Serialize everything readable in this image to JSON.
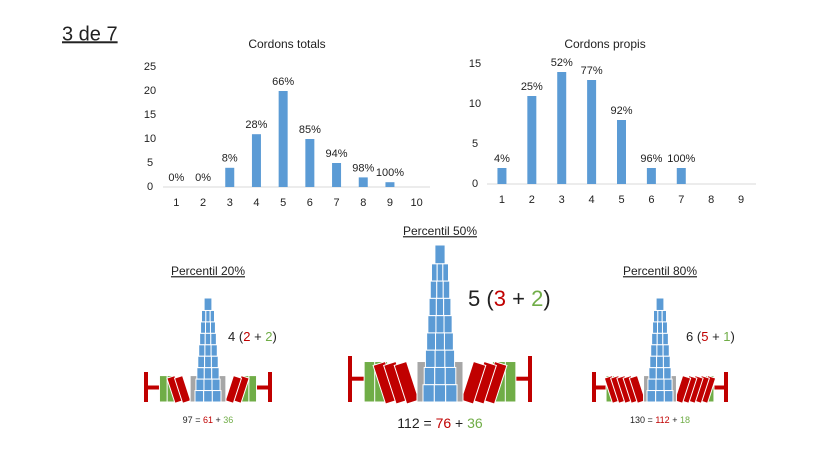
{
  "slide_number": "3 de 7",
  "chart_data": [
    {
      "type": "bar",
      "title": "Cordons totals",
      "categories": [
        "1",
        "2",
        "3",
        "4",
        "5",
        "6",
        "7",
        "8",
        "9",
        "10"
      ],
      "values": [
        0,
        0,
        4,
        11,
        20,
        10,
        5,
        2,
        1,
        0
      ],
      "annotations": [
        "0%",
        "0%",
        "8%",
        "28%",
        "66%",
        "85%",
        "94%",
        "98%",
        "100%",
        null
      ],
      "color": "#5b9bd5",
      "ylim": [
        0,
        25
      ],
      "yticks": [
        0,
        5,
        10,
        15,
        20,
        25
      ],
      "grid": false
    },
    {
      "type": "bar",
      "title": "Cordons propis",
      "categories": [
        "1",
        "2",
        "3",
        "4",
        "5",
        "6",
        "7",
        "8",
        "9"
      ],
      "values": [
        2,
        11,
        14,
        13,
        8,
        2,
        2,
        0,
        0
      ],
      "annotations": [
        "4%",
        "25%",
        "52%",
        "77%",
        "92%",
        "96%",
        "100%",
        null,
        null
      ],
      "color": "#5b9bd5",
      "ylim": [
        0,
        15
      ],
      "yticks": [
        0,
        5,
        10,
        15
      ],
      "grid": false
    }
  ],
  "panels": [
    {
      "title": "Percentil 20%",
      "formula": [
        "4",
        "(",
        "2",
        "+",
        "2",
        ")"
      ],
      "equation": [
        "97",
        "=",
        "61",
        "+",
        "36"
      ]
    },
    {
      "title": "Percentil 50%",
      "formula": [
        "5",
        "(",
        "3",
        "+",
        "2",
        ")"
      ],
      "equation": [
        "112",
        "=",
        "76",
        "+",
        "36"
      ]
    },
    {
      "title": "Percentil 80%",
      "formula": [
        "6",
        "(",
        "5",
        "+",
        "1",
        ")"
      ],
      "equation": [
        "130",
        "=",
        "112",
        "+",
        "18"
      ]
    }
  ]
}
